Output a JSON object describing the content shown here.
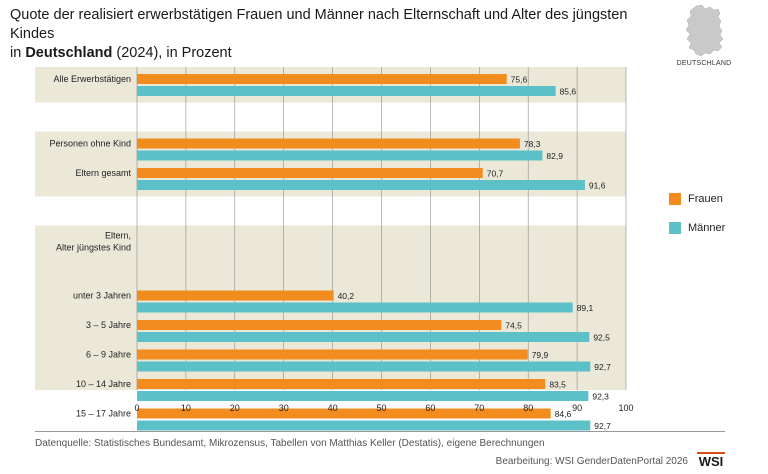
{
  "title": {
    "line1": "Quote der realisiert erwerbstätigen Frauen und Männer nach Elternschaft und Alter des jüngsten Kindes",
    "line2_prefix": "in ",
    "line2_bold": "Deutschland",
    "line2_suffix": " (2024), in Prozent"
  },
  "map_label": "DEUTSCHLAND",
  "legend": {
    "frauen": "Frauen",
    "maenner": "Männer"
  },
  "colors": {
    "frauen": "#f28c1e",
    "maenner": "#5bc0c8",
    "band": "#ebe8d8"
  },
  "chart_data": {
    "type": "bar",
    "orientation": "horizontal",
    "xlim": [
      0,
      100
    ],
    "x_ticks": [
      "0",
      "10",
      "20",
      "30",
      "40",
      "50",
      "60",
      "70",
      "80",
      "90",
      "100"
    ],
    "groups": [
      {
        "header": "",
        "categories": [
          {
            "label": "Alle Erwerbstätigen",
            "frauen": 75.6,
            "frauen_label": "75,6",
            "maenner": 85.6,
            "maenner_label": "85,6"
          }
        ]
      },
      {
        "header": "",
        "categories": [
          {
            "label": "Personen ohne Kind",
            "frauen": 78.3,
            "frauen_label": "78,3",
            "maenner": 82.9,
            "maenner_label": "82,9"
          },
          {
            "label": "Eltern gesamt",
            "frauen": 70.7,
            "frauen_label": "70,7",
            "maenner": 91.6,
            "maenner_label": "91,6"
          }
        ]
      },
      {
        "header_lines": [
          "Eltern,",
          "Alter jüngstes Kind"
        ],
        "categories": [
          {
            "label": "unter 3 Jahren",
            "frauen": 40.2,
            "frauen_label": "40,2",
            "maenner": 89.1,
            "maenner_label": "89,1"
          },
          {
            "label": "3 – 5 Jahre",
            "frauen": 74.5,
            "frauen_label": "74,5",
            "maenner": 92.5,
            "maenner_label": "92,5"
          },
          {
            "label": "6 – 9 Jahre",
            "frauen": 79.9,
            "frauen_label": "79,9",
            "maenner": 92.7,
            "maenner_label": "92,7"
          },
          {
            "label": "10 – 14 Jahre",
            "frauen": 83.5,
            "frauen_label": "83,5",
            "maenner": 92.3,
            "maenner_label": "92,3"
          },
          {
            "label": "15 – 17 Jahre",
            "frauen": 84.6,
            "frauen_label": "84,6",
            "maenner": 92.7,
            "maenner_label": "92,7"
          }
        ]
      }
    ]
  },
  "source": "Datenquelle: Statistisches Bundesamt, Mikrozensus, Tabellen von Matthias Keller (Destatis), eigene Berechnungen",
  "editor": "Bearbeitung: WSI GenderDatenPortal 2026",
  "logo_text": "WSI"
}
